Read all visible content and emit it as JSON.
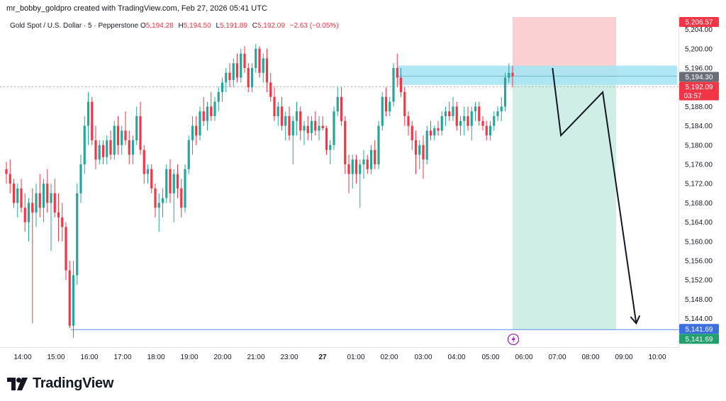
{
  "header": {
    "credit": "mr_bobby_goldpro created with TradingView.com, Feb 27, 2026 05:41 UTC"
  },
  "symbol": {
    "name": "Gold Spot / U.S. Dollar · 5 · Pepperstone",
    "open_label": "O",
    "open_value": "5,194.28",
    "high_label": "H",
    "high_value": "5,194.50",
    "low_label": "L",
    "low_value": "5,191.89",
    "close_label": "C",
    "close_value": "5,192.09",
    "change": "−2.63 (−0.05%)"
  },
  "colors": {
    "up": "#26a69a",
    "down": "#f23645",
    "stop_zone": "#fbd0d3",
    "target_zone": "#cfeee5",
    "entry_zone": "#a6e4f3",
    "target_line": "#5b8def"
  },
  "logo": {
    "text": "TradingView",
    "icon": "tradingview-logo-icon"
  },
  "chart_data": {
    "type": "candlestick",
    "interval": "5",
    "y_axis": {
      "ticks": [
        "5,204.00",
        "5,200.00",
        "5,196.00",
        "5,192.00",
        "5,188.00",
        "5,184.00",
        "5,180.00",
        "5,176.00",
        "5,172.00",
        "5,168.00",
        "5,164.00",
        "5,160.00",
        "5,156.00",
        "5,152.00",
        "5,148.00",
        "5,144.00"
      ],
      "range": [
        5138,
        5208
      ]
    },
    "x_axis": {
      "ticks": [
        "14:00",
        "15:00",
        "16:00",
        "17:00",
        "18:00",
        "19:00",
        "20:00",
        "21:00",
        "23:00",
        "27",
        "01:00",
        "02:00",
        "03:00",
        "04:00",
        "05:00",
        "06:00",
        "07:00",
        "08:00",
        "09:00",
        "10:00"
      ]
    },
    "price_tags": {
      "stop": "5,206.57",
      "entry": "5,194.30",
      "last": "5,192.09",
      "countdown": "03:57",
      "target_line": "5,141.69",
      "target": "5,141.69"
    },
    "position": {
      "side": "short",
      "entry": 5194.3,
      "stop": 5206.57,
      "target": 5141.69,
      "entry_zone": [
        5192.5,
        5196.5
      ],
      "start": "05:40",
      "end": "08:40"
    },
    "projection_path": [
      {
        "time": "05:50",
        "price": 5196.0
      },
      {
        "time": "06:05",
        "price": 5182.0
      },
      {
        "time": "07:20",
        "price": 5191.0
      },
      {
        "time": "08:20",
        "price": 5143.0
      }
    ],
    "candles": [
      {
        "o": 5175.0,
        "h": 5176.5,
        "l": 5172.0,
        "c": 5174.0
      },
      {
        "o": 5174.0,
        "h": 5177.0,
        "l": 5170.0,
        "c": 5172.0
      },
      {
        "o": 5172.0,
        "h": 5173.0,
        "l": 5167.0,
        "c": 5168.0
      },
      {
        "o": 5168.0,
        "h": 5172.0,
        "l": 5165.0,
        "c": 5171.0
      },
      {
        "o": 5171.0,
        "h": 5173.0,
        "l": 5166.0,
        "c": 5167.0
      },
      {
        "o": 5167.0,
        "h": 5170.0,
        "l": 5162.0,
        "c": 5164.0
      },
      {
        "o": 5164.0,
        "h": 5169.0,
        "l": 5160.0,
        "c": 5168.0
      },
      {
        "o": 5168.0,
        "h": 5171.0,
        "l": 5143.0,
        "c": 5166.0
      },
      {
        "o": 5166.0,
        "h": 5172.0,
        "l": 5163.0,
        "c": 5170.0
      },
      {
        "o": 5170.0,
        "h": 5174.0,
        "l": 5165.0,
        "c": 5167.0
      },
      {
        "o": 5167.0,
        "h": 5173.0,
        "l": 5164.0,
        "c": 5172.0
      },
      {
        "o": 5172.0,
        "h": 5175.0,
        "l": 5166.0,
        "c": 5168.0
      },
      {
        "o": 5168.0,
        "h": 5172.0,
        "l": 5158.0,
        "c": 5170.0
      },
      {
        "o": 5170.0,
        "h": 5173.0,
        "l": 5165.0,
        "c": 5166.0
      },
      {
        "o": 5166.0,
        "h": 5170.0,
        "l": 5160.0,
        "c": 5165.0
      },
      {
        "o": 5165.0,
        "h": 5168.0,
        "l": 5160.0,
        "c": 5163.0
      },
      {
        "o": 5163.0,
        "h": 5164.0,
        "l": 5152.0,
        "c": 5154.0
      },
      {
        "o": 5154.0,
        "h": 5156.0,
        "l": 5142.0,
        "c": 5142.5
      },
      {
        "o": 5142.5,
        "h": 5156.0,
        "l": 5140.0,
        "c": 5153.0
      },
      {
        "o": 5153.0,
        "h": 5172.0,
        "l": 5151.0,
        "c": 5170.0
      },
      {
        "o": 5170.0,
        "h": 5178.0,
        "l": 5168.0,
        "c": 5176.0
      },
      {
        "o": 5176.0,
        "h": 5186.0,
        "l": 5174.0,
        "c": 5184.0
      },
      {
        "o": 5184.0,
        "h": 5191.0,
        "l": 5180.0,
        "c": 5189.0
      },
      {
        "o": 5189.0,
        "h": 5190.0,
        "l": 5180.0,
        "c": 5181.0
      },
      {
        "o": 5181.0,
        "h": 5184.0,
        "l": 5175.0,
        "c": 5177.0
      },
      {
        "o": 5177.0,
        "h": 5181.0,
        "l": 5176.0,
        "c": 5180.0
      },
      {
        "o": 5180.0,
        "h": 5181.0,
        "l": 5176.0,
        "c": 5177.5
      },
      {
        "o": 5177.5,
        "h": 5182.0,
        "l": 5176.0,
        "c": 5181.0
      },
      {
        "o": 5181.0,
        "h": 5183.0,
        "l": 5177.0,
        "c": 5178.0
      },
      {
        "o": 5178.0,
        "h": 5185.0,
        "l": 5177.0,
        "c": 5184.0
      },
      {
        "o": 5184.0,
        "h": 5186.0,
        "l": 5178.0,
        "c": 5180.0
      },
      {
        "o": 5180.0,
        "h": 5184.0,
        "l": 5178.0,
        "c": 5183.0
      },
      {
        "o": 5183.0,
        "h": 5187.0,
        "l": 5180.0,
        "c": 5181.0
      },
      {
        "o": 5181.0,
        "h": 5183.0,
        "l": 5176.0,
        "c": 5178.0
      },
      {
        "o": 5178.0,
        "h": 5182.0,
        "l": 5176.0,
        "c": 5181.0
      },
      {
        "o": 5181.0,
        "h": 5188.0,
        "l": 5180.0,
        "c": 5186.0
      },
      {
        "o": 5186.0,
        "h": 5189.0,
        "l": 5178.0,
        "c": 5179.0
      },
      {
        "o": 5179.0,
        "h": 5180.0,
        "l": 5172.0,
        "c": 5174.0
      },
      {
        "o": 5174.0,
        "h": 5176.0,
        "l": 5172.0,
        "c": 5175.0
      },
      {
        "o": 5175.0,
        "h": 5176.0,
        "l": 5170.0,
        "c": 5171.0
      },
      {
        "o": 5171.0,
        "h": 5172.0,
        "l": 5165.0,
        "c": 5167.0
      },
      {
        "o": 5167.0,
        "h": 5170.0,
        "l": 5162.0,
        "c": 5168.0
      },
      {
        "o": 5168.0,
        "h": 5171.0,
        "l": 5165.0,
        "c": 5169.0
      },
      {
        "o": 5169.0,
        "h": 5176.0,
        "l": 5168.0,
        "c": 5175.0
      },
      {
        "o": 5175.0,
        "h": 5177.0,
        "l": 5168.0,
        "c": 5170.0
      },
      {
        "o": 5170.0,
        "h": 5175.0,
        "l": 5164.0,
        "c": 5174.0
      },
      {
        "o": 5174.0,
        "h": 5176.0,
        "l": 5169.0,
        "c": 5171.0
      },
      {
        "o": 5171.0,
        "h": 5173.0,
        "l": 5165.0,
        "c": 5167.0
      },
      {
        "o": 5167.0,
        "h": 5176.0,
        "l": 5166.0,
        "c": 5175.0
      },
      {
        "o": 5175.0,
        "h": 5182.0,
        "l": 5174.0,
        "c": 5181.0
      },
      {
        "o": 5181.0,
        "h": 5186.0,
        "l": 5178.0,
        "c": 5184.0
      },
      {
        "o": 5184.0,
        "h": 5186.0,
        "l": 5180.0,
        "c": 5182.0
      },
      {
        "o": 5182.0,
        "h": 5188.0,
        "l": 5181.0,
        "c": 5187.0
      },
      {
        "o": 5187.0,
        "h": 5190.0,
        "l": 5184.0,
        "c": 5185.0
      },
      {
        "o": 5185.0,
        "h": 5189.0,
        "l": 5183.0,
        "c": 5188.0
      },
      {
        "o": 5188.0,
        "h": 5191.0,
        "l": 5185.0,
        "c": 5186.0
      },
      {
        "o": 5186.0,
        "h": 5190.0,
        "l": 5185.0,
        "c": 5189.0
      },
      {
        "o": 5189.0,
        "h": 5192.0,
        "l": 5187.0,
        "c": 5191.0
      },
      {
        "o": 5191.0,
        "h": 5194.0,
        "l": 5189.0,
        "c": 5193.0
      },
      {
        "o": 5193.0,
        "h": 5196.0,
        "l": 5191.0,
        "c": 5195.0
      },
      {
        "o": 5195.0,
        "h": 5197.0,
        "l": 5192.0,
        "c": 5193.5
      },
      {
        "o": 5193.5,
        "h": 5198.0,
        "l": 5192.0,
        "c": 5197.0
      },
      {
        "o": 5197.0,
        "h": 5199.0,
        "l": 5193.0,
        "c": 5194.0
      },
      {
        "o": 5194.0,
        "h": 5200.0,
        "l": 5193.0,
        "c": 5199.0
      },
      {
        "o": 5199.0,
        "h": 5200.5,
        "l": 5195.0,
        "c": 5196.0
      },
      {
        "o": 5196.0,
        "h": 5197.0,
        "l": 5191.0,
        "c": 5192.0
      },
      {
        "o": 5192.0,
        "h": 5197.0,
        "l": 5191.0,
        "c": 5196.0
      },
      {
        "o": 5196.0,
        "h": 5201.0,
        "l": 5195.0,
        "c": 5200.0
      },
      {
        "o": 5200.0,
        "h": 5200.5,
        "l": 5194.0,
        "c": 5195.0
      },
      {
        "o": 5195.0,
        "h": 5199.0,
        "l": 5193.0,
        "c": 5198.0
      },
      {
        "o": 5198.0,
        "h": 5200.0,
        "l": 5191.0,
        "c": 5193.0
      },
      {
        "o": 5193.0,
        "h": 5195.0,
        "l": 5189.0,
        "c": 5190.0
      },
      {
        "o": 5190.0,
        "h": 5192.0,
        "l": 5185.0,
        "c": 5186.0
      },
      {
        "o": 5186.0,
        "h": 5189.0,
        "l": 5184.0,
        "c": 5188.0
      },
      {
        "o": 5188.0,
        "h": 5190.0,
        "l": 5183.0,
        "c": 5184.0
      },
      {
        "o": 5184.0,
        "h": 5187.0,
        "l": 5181.0,
        "c": 5186.0
      },
      {
        "o": 5186.0,
        "h": 5188.0,
        "l": 5181.0,
        "c": 5182.0
      },
      {
        "o": 5182.0,
        "h": 5186.0,
        "l": 5176.0,
        "c": 5185.0
      },
      {
        "o": 5185.0,
        "h": 5189.0,
        "l": 5182.0,
        "c": 5187.0
      },
      {
        "o": 5187.0,
        "h": 5188.0,
        "l": 5181.0,
        "c": 5183.0
      },
      {
        "o": 5183.0,
        "h": 5185.0,
        "l": 5180.0,
        "c": 5184.0
      },
      {
        "o": 5184.0,
        "h": 5186.0,
        "l": 5181.0,
        "c": 5182.5
      },
      {
        "o": 5182.5,
        "h": 5186.0,
        "l": 5181.0,
        "c": 5185.0
      },
      {
        "o": 5185.0,
        "h": 5187.0,
        "l": 5182.0,
        "c": 5183.0
      },
      {
        "o": 5183.0,
        "h": 5186.0,
        "l": 5181.0,
        "c": 5184.0
      },
      {
        "o": 5184.0,
        "h": 5186.0,
        "l": 5183.0,
        "c": 5183.5
      },
      {
        "o": 5183.5,
        "h": 5184.0,
        "l": 5178.0,
        "c": 5179.0
      },
      {
        "o": 5179.0,
        "h": 5181.0,
        "l": 5176.0,
        "c": 5180.0
      },
      {
        "o": 5180.0,
        "h": 5188.0,
        "l": 5179.0,
        "c": 5187.0
      },
      {
        "o": 5187.0,
        "h": 5192.0,
        "l": 5186.0,
        "c": 5190.0
      },
      {
        "o": 5190.0,
        "h": 5192.0,
        "l": 5184.0,
        "c": 5185.0
      },
      {
        "o": 5185.0,
        "h": 5186.0,
        "l": 5174.0,
        "c": 5176.0
      },
      {
        "o": 5176.0,
        "h": 5178.0,
        "l": 5170.0,
        "c": 5174.0
      },
      {
        "o": 5174.0,
        "h": 5178.0,
        "l": 5171.0,
        "c": 5177.0
      },
      {
        "o": 5177.0,
        "h": 5178.0,
        "l": 5172.0,
        "c": 5174.0
      },
      {
        "o": 5174.0,
        "h": 5177.0,
        "l": 5167.0,
        "c": 5176.0
      },
      {
        "o": 5176.0,
        "h": 5179.0,
        "l": 5173.0,
        "c": 5177.0
      },
      {
        "o": 5177.0,
        "h": 5178.0,
        "l": 5174.0,
        "c": 5175.0
      },
      {
        "o": 5175.0,
        "h": 5180.0,
        "l": 5174.0,
        "c": 5179.0
      },
      {
        "o": 5179.0,
        "h": 5181.0,
        "l": 5175.0,
        "c": 5176.0
      },
      {
        "o": 5176.0,
        "h": 5185.0,
        "l": 5175.0,
        "c": 5184.0
      },
      {
        "o": 5184.0,
        "h": 5191.0,
        "l": 5183.0,
        "c": 5190.0
      },
      {
        "o": 5190.0,
        "h": 5192.0,
        "l": 5186.0,
        "c": 5187.0
      },
      {
        "o": 5187.0,
        "h": 5190.0,
        "l": 5186.0,
        "c": 5189.0
      },
      {
        "o": 5189.0,
        "h": 5197.0,
        "l": 5188.0,
        "c": 5196.0
      },
      {
        "o": 5196.0,
        "h": 5199.0,
        "l": 5192.0,
        "c": 5194.0
      },
      {
        "o": 5194.0,
        "h": 5196.0,
        "l": 5190.0,
        "c": 5191.0
      },
      {
        "o": 5191.0,
        "h": 5192.0,
        "l": 5184.0,
        "c": 5186.0
      },
      {
        "o": 5186.0,
        "h": 5187.0,
        "l": 5182.0,
        "c": 5184.0
      },
      {
        "o": 5184.0,
        "h": 5185.0,
        "l": 5179.0,
        "c": 5181.0
      },
      {
        "o": 5181.0,
        "h": 5183.0,
        "l": 5174.0,
        "c": 5178.0
      },
      {
        "o": 5178.0,
        "h": 5181.0,
        "l": 5175.0,
        "c": 5180.0
      },
      {
        "o": 5180.0,
        "h": 5182.0,
        "l": 5173.0,
        "c": 5177.0
      },
      {
        "o": 5177.0,
        "h": 5184.0,
        "l": 5176.0,
        "c": 5183.0
      },
      {
        "o": 5183.0,
        "h": 5185.0,
        "l": 5181.0,
        "c": 5182.0
      },
      {
        "o": 5182.0,
        "h": 5184.0,
        "l": 5181.0,
        "c": 5183.5
      },
      {
        "o": 5183.5,
        "h": 5185.0,
        "l": 5182.0,
        "c": 5183.0
      },
      {
        "o": 5183.0,
        "h": 5187.0,
        "l": 5182.0,
        "c": 5186.0
      },
      {
        "o": 5186.0,
        "h": 5188.0,
        "l": 5184.0,
        "c": 5187.0
      },
      {
        "o": 5187.0,
        "h": 5189.0,
        "l": 5185.0,
        "c": 5186.0
      },
      {
        "o": 5186.0,
        "h": 5190.0,
        "l": 5185.0,
        "c": 5188.0
      },
      {
        "o": 5188.0,
        "h": 5189.0,
        "l": 5183.0,
        "c": 5184.0
      },
      {
        "o": 5184.0,
        "h": 5186.0,
        "l": 5182.0,
        "c": 5185.0
      },
      {
        "o": 5185.0,
        "h": 5188.0,
        "l": 5182.0,
        "c": 5186.0
      },
      {
        "o": 5186.0,
        "h": 5188.0,
        "l": 5183.0,
        "c": 5184.0
      },
      {
        "o": 5184.0,
        "h": 5188.0,
        "l": 5181.0,
        "c": 5187.0
      },
      {
        "o": 5187.0,
        "h": 5189.0,
        "l": 5185.0,
        "c": 5188.0
      },
      {
        "o": 5188.0,
        "h": 5189.0,
        "l": 5184.0,
        "c": 5185.0
      },
      {
        "o": 5185.0,
        "h": 5186.0,
        "l": 5183.0,
        "c": 5184.0
      },
      {
        "o": 5184.0,
        "h": 5185.0,
        "l": 5181.0,
        "c": 5182.0
      },
      {
        "o": 5182.0,
        "h": 5185.0,
        "l": 5181.0,
        "c": 5184.0
      },
      {
        "o": 5184.0,
        "h": 5187.0,
        "l": 5183.0,
        "c": 5186.0
      },
      {
        "o": 5186.0,
        "h": 5188.0,
        "l": 5185.0,
        "c": 5187.0
      },
      {
        "o": 5187.0,
        "h": 5190.0,
        "l": 5185.0,
        "c": 5188.0
      },
      {
        "o": 5188.0,
        "h": 5195.0,
        "l": 5187.0,
        "c": 5194.0
      },
      {
        "o": 5194.0,
        "h": 5197.0,
        "l": 5193.0,
        "c": 5195.0
      },
      {
        "o": 5195.0,
        "h": 5196.5,
        "l": 5192.0,
        "c": 5194.28
      }
    ]
  }
}
